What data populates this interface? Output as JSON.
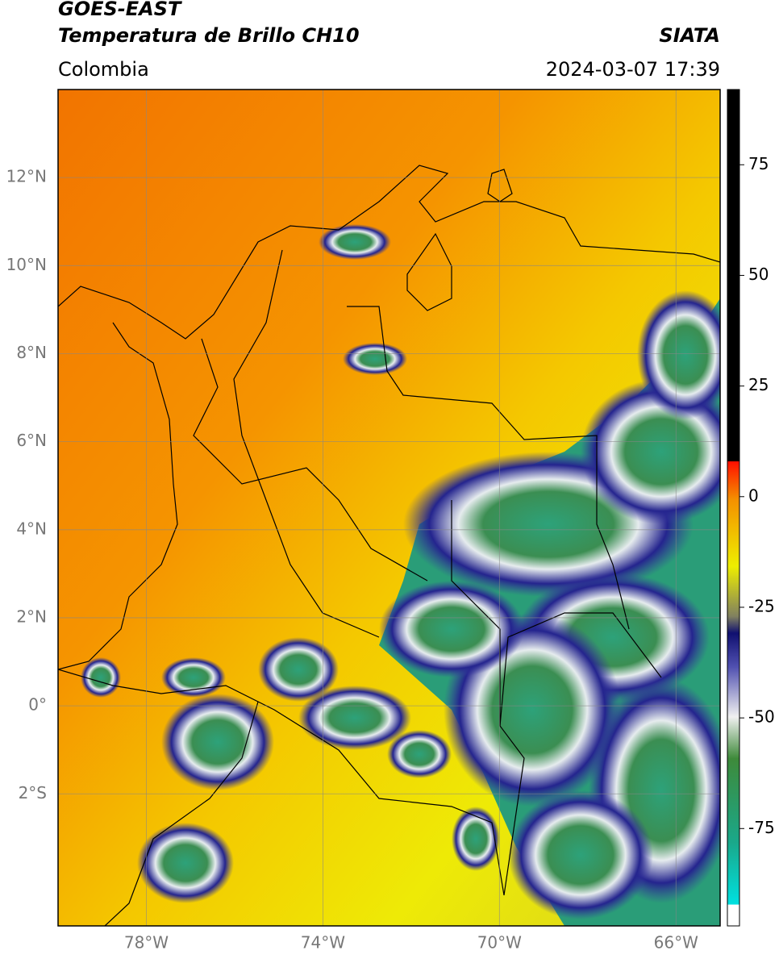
{
  "header": {
    "satellite": "GOES-EAST",
    "product": "Temperatura de Brillo CH10",
    "source": "SIATA",
    "region": "Colombia",
    "timestamp": "2024-03-07 17:39"
  },
  "map": {
    "xlim": [
      -80,
      -65
    ],
    "ylim": [
      -5,
      14
    ],
    "lon_ticks": [
      {
        "value": -78,
        "label": "78°W"
      },
      {
        "value": -74,
        "label": "74°W"
      },
      {
        "value": -70,
        "label": "70°W"
      },
      {
        "value": -66,
        "label": "66°W"
      }
    ],
    "lat_ticks": [
      {
        "value": 12,
        "label": "12°N"
      },
      {
        "value": 10,
        "label": "10°N"
      },
      {
        "value": 8,
        "label": "8°N"
      },
      {
        "value": 6,
        "label": "6°N"
      },
      {
        "value": 4,
        "label": "4°N"
      },
      {
        "value": 2,
        "label": "2°N"
      },
      {
        "value": 0,
        "label": "0°"
      },
      {
        "value": -2,
        "label": "2°S"
      }
    ]
  },
  "colorbar": {
    "lim": [
      -97,
      92
    ],
    "ticks": [
      75,
      50,
      25,
      0,
      -25,
      -50,
      -75
    ]
  }
}
